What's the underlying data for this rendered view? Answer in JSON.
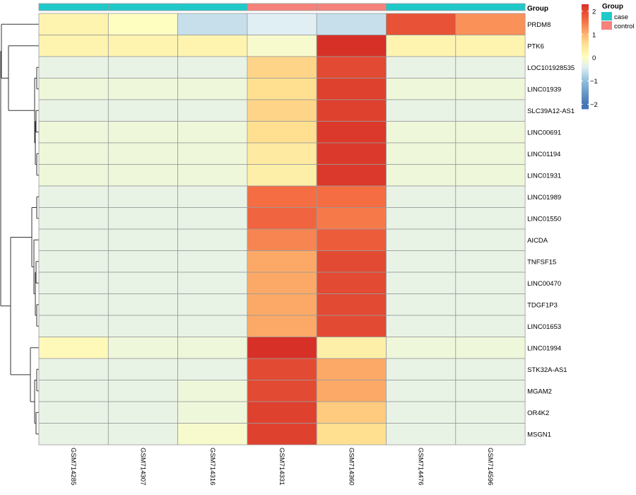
{
  "chart_data": {
    "type": "heatmap",
    "columns": [
      "GSM714285",
      "GSM714307",
      "GSM714316",
      "GSM714331",
      "GSM714360",
      "GSM714476",
      "GSM714596"
    ],
    "column_groups": [
      "case",
      "case",
      "case",
      "control",
      "control",
      "case",
      "case"
    ],
    "rows": [
      "PRDM8",
      "PTK6",
      "LOC101928535",
      "LINC01939",
      "SLC39A12-AS1",
      "LINC00691",
      "LINC01194",
      "LINC01931",
      "LINC01989",
      "LINC01550",
      "AICDA",
      "TNFSF15",
      "LINC00470",
      "TDGF1P3",
      "LINC01653",
      "LINC01994",
      "STK32A-AS1",
      "MGAM2",
      "OR4K2",
      "MSGN1"
    ],
    "values": [
      [
        0.2,
        0.0,
        -0.6,
        -0.4,
        -0.6,
        1.9,
        1.3
      ],
      [
        0.2,
        0.2,
        0.2,
        -0.1,
        2.3,
        0.2,
        0.2
      ],
      [
        -0.3,
        -0.3,
        -0.3,
        0.7,
        2.0,
        -0.3,
        -0.3
      ],
      [
        -0.2,
        -0.2,
        -0.2,
        0.6,
        2.1,
        -0.2,
        -0.2
      ],
      [
        -0.3,
        -0.3,
        -0.3,
        0.7,
        2.1,
        -0.3,
        -0.3
      ],
      [
        -0.2,
        -0.2,
        -0.2,
        0.6,
        2.2,
        -0.2,
        -0.2
      ],
      [
        -0.2,
        -0.2,
        -0.2,
        0.4,
        2.2,
        -0.2,
        -0.2
      ],
      [
        -0.2,
        -0.2,
        -0.2,
        0.3,
        2.2,
        -0.2,
        -0.2
      ],
      [
        -0.3,
        -0.3,
        -0.3,
        1.6,
        1.6,
        -0.3,
        -0.3
      ],
      [
        -0.3,
        -0.3,
        -0.3,
        1.7,
        1.5,
        -0.3,
        -0.3
      ],
      [
        -0.3,
        -0.3,
        -0.3,
        1.4,
        1.8,
        -0.3,
        -0.3
      ],
      [
        -0.3,
        -0.3,
        -0.3,
        1.1,
        2.0,
        -0.3,
        -0.3
      ],
      [
        -0.3,
        -0.3,
        -0.3,
        1.1,
        2.0,
        -0.3,
        -0.3
      ],
      [
        -0.3,
        -0.3,
        -0.3,
        1.1,
        2.0,
        -0.3,
        -0.3
      ],
      [
        -0.3,
        -0.3,
        -0.3,
        1.1,
        2.0,
        -0.3,
        -0.3
      ],
      [
        0.1,
        -0.2,
        -0.2,
        2.3,
        0.3,
        -0.2,
        -0.2
      ],
      [
        -0.3,
        -0.3,
        -0.3,
        2.0,
        1.1,
        -0.3,
        -0.3
      ],
      [
        -0.3,
        -0.3,
        -0.2,
        2.0,
        1.1,
        -0.3,
        -0.3
      ],
      [
        -0.3,
        -0.3,
        -0.2,
        2.1,
        0.8,
        -0.3,
        -0.3
      ],
      [
        -0.3,
        -0.3,
        -0.1,
        2.1,
        0.6,
        -0.3,
        -0.3
      ]
    ],
    "color_scale": {
      "stops": [
        {
          "value": -2,
          "color": "#4575b4"
        },
        {
          "value": -1,
          "color": "#91bfdb"
        },
        {
          "value": -0.4,
          "color": "#e0eff3"
        },
        {
          "value": 0,
          "color": "#fefec0"
        },
        {
          "value": 0.6,
          "color": "#fee090"
        },
        {
          "value": 1,
          "color": "#fdb56e"
        },
        {
          "value": 1.6,
          "color": "#f46d43"
        },
        {
          "value": 2.3,
          "color": "#d73027"
        }
      ],
      "ticks": [
        2,
        1,
        0,
        -1,
        -2
      ]
    },
    "group_annotation": {
      "title": "Group",
      "levels": [
        {
          "name": "case",
          "color": "#1fc9ca"
        },
        {
          "name": "control",
          "color": "#f6827b"
        }
      ]
    },
    "row_dendrogram": true,
    "grid": true,
    "legend_position": "right"
  }
}
